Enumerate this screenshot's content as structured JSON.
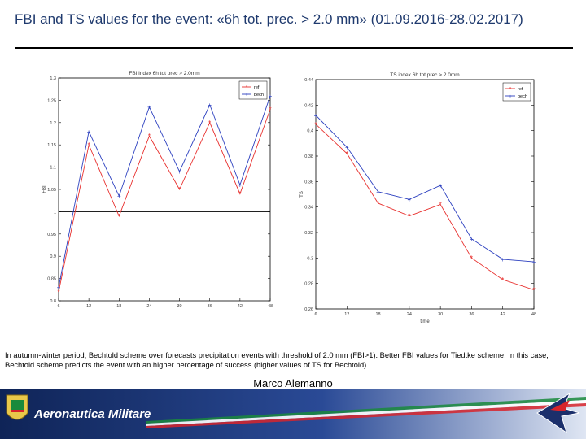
{
  "header": {
    "title": "FBI and TS values for the event: «6h tot. prec. > 2.0 mm» (01.09.2016-28.02.2017)"
  },
  "chart_data": [
    {
      "type": "line",
      "title": "FBI index 6h tot prec > 2.0mm",
      "xlabel": "time",
      "ylabel": "FBI",
      "x": [
        6,
        12,
        18,
        24,
        30,
        36,
        42,
        48
      ],
      "ylim": [
        0.8,
        1.3
      ],
      "xticks": [
        "6",
        "12",
        "18",
        "24",
        "30",
        "36",
        "42",
        "48"
      ],
      "yticks": [
        "0.8",
        "0.85",
        "0.9",
        "0.95",
        "1",
        "1.05",
        "1.1",
        "1.15",
        "1.2",
        "1.25",
        "1.3"
      ],
      "reference_line": 1,
      "legend_position": "top-right",
      "series": [
        {
          "name": "ref",
          "color": "#e8302e",
          "marker": "*",
          "values": [
            0.82,
            1.15,
            0.99,
            1.17,
            1.05,
            1.2,
            1.04,
            1.23
          ]
        },
        {
          "name": "bech",
          "color": "#2b3fbf",
          "marker": "+",
          "values": [
            0.83,
            1.18,
            1.035,
            1.235,
            1.09,
            1.24,
            1.06,
            1.26
          ]
        }
      ]
    },
    {
      "type": "line",
      "title": "TS index 6h tot prec > 2.0mm",
      "xlabel": "time",
      "ylabel": "TS",
      "x": [
        6,
        12,
        18,
        24,
        30,
        36,
        42,
        48
      ],
      "ylim": [
        0.26,
        0.44
      ],
      "xticks": [
        "6",
        "12",
        "18",
        "24",
        "30",
        "36",
        "42",
        "48"
      ],
      "yticks": [
        "0.26",
        "0.28",
        "0.3",
        "0.32",
        "0.34",
        "0.36",
        "0.38",
        "0.4",
        "0.42",
        "0.44"
      ],
      "legend_position": "top-right",
      "series": [
        {
          "name": "ref",
          "color": "#e8302e",
          "marker": "*",
          "values": [
            0.405,
            0.382,
            0.343,
            0.333,
            0.342,
            0.3,
            0.283,
            0.275
          ]
        },
        {
          "name": "bech",
          "color": "#2b3fbf",
          "marker": "+",
          "values": [
            0.412,
            0.387,
            0.352,
            0.346,
            0.357,
            0.315,
            0.299,
            0.297
          ]
        }
      ]
    }
  ],
  "caption": "In autumn-winter period, Bechtold scheme over forecasts precipitation events with threshold of 2.0 mm (FBI>1). Better FBI values for Tiedtke scheme. In this case, Bechtold scheme predicts the event with an higher percentage of success (higher values of TS for Bechtold).",
  "author": "Marco Alemanno",
  "footer": {
    "brand": "Aeronautica Militare",
    "colors": {
      "navy": "#1b2f6b",
      "green": "#1a8a3c",
      "red": "#d8242b"
    }
  }
}
